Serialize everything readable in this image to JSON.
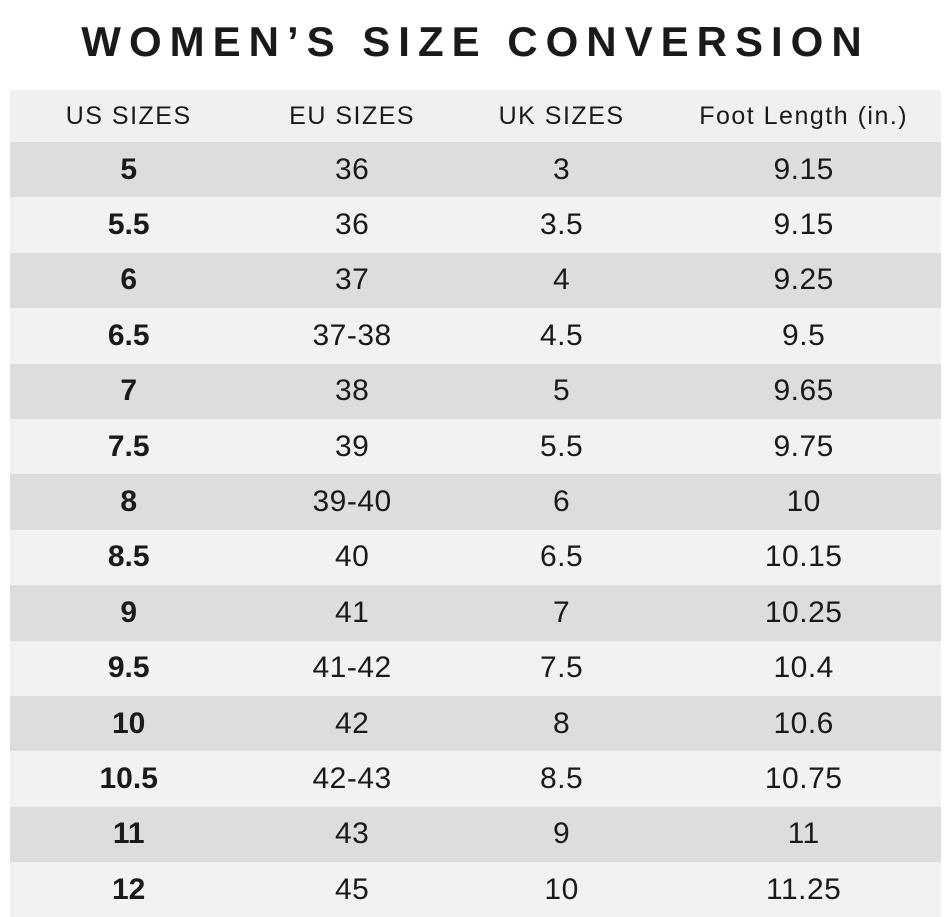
{
  "title": "WOMEN’S SIZE CONVERSION",
  "table": {
    "columns": [
      "US SIZES",
      "EU SIZES",
      "UK SIZES",
      "Foot Length (in.)"
    ],
    "rows": [
      [
        "5",
        "36",
        "3",
        "9.15"
      ],
      [
        "5.5",
        "36",
        "3.5",
        "9.15"
      ],
      [
        "6",
        "37",
        "4",
        "9.25"
      ],
      [
        "6.5",
        "37-38",
        "4.5",
        "9.5"
      ],
      [
        "7",
        "38",
        "5",
        "9.65"
      ],
      [
        "7.5",
        "39",
        "5.5",
        "9.75"
      ],
      [
        "8",
        "39-40",
        "6",
        "10"
      ],
      [
        "8.5",
        "40",
        "6.5",
        "10.15"
      ],
      [
        "9",
        "41",
        "7",
        "10.25"
      ],
      [
        "9.5",
        "41-42",
        "7.5",
        "10.4"
      ],
      [
        "10",
        "42",
        "8",
        "10.6"
      ],
      [
        "10.5",
        "42-43",
        "8.5",
        "10.75"
      ],
      [
        "11",
        "43",
        "9",
        "11"
      ],
      [
        "12",
        "45",
        "10",
        "11.25"
      ]
    ]
  },
  "colors": {
    "page_background": "#ffffff",
    "header_background": "#f1f0ee",
    "row_dark": "#dcddde",
    "row_light": "#f2f2f1",
    "text": "#1a1a1a"
  },
  "chart_data": {
    "type": "table",
    "title": "WOMEN’S SIZE CONVERSION",
    "columns": [
      "US SIZES",
      "EU SIZES",
      "UK SIZES",
      "Foot Length (in.)"
    ],
    "rows": [
      [
        "5",
        "36",
        "3",
        "9.15"
      ],
      [
        "5.5",
        "36",
        "3.5",
        "9.15"
      ],
      [
        "6",
        "37",
        "4",
        "9.25"
      ],
      [
        "6.5",
        "37-38",
        "4.5",
        "9.5"
      ],
      [
        "7",
        "38",
        "5",
        "9.65"
      ],
      [
        "7.5",
        "39",
        "5.5",
        "9.75"
      ],
      [
        "8",
        "39-40",
        "6",
        "10"
      ],
      [
        "8.5",
        "40",
        "6.5",
        "10.15"
      ],
      [
        "9",
        "41",
        "7",
        "10.25"
      ],
      [
        "9.5",
        "41-42",
        "7.5",
        "10.4"
      ],
      [
        "10",
        "42",
        "8",
        "10.6"
      ],
      [
        "10.5",
        "42-43",
        "8.5",
        "10.75"
      ],
      [
        "11",
        "43",
        "9",
        "11"
      ],
      [
        "12",
        "45",
        "10",
        "11.25"
      ]
    ]
  }
}
